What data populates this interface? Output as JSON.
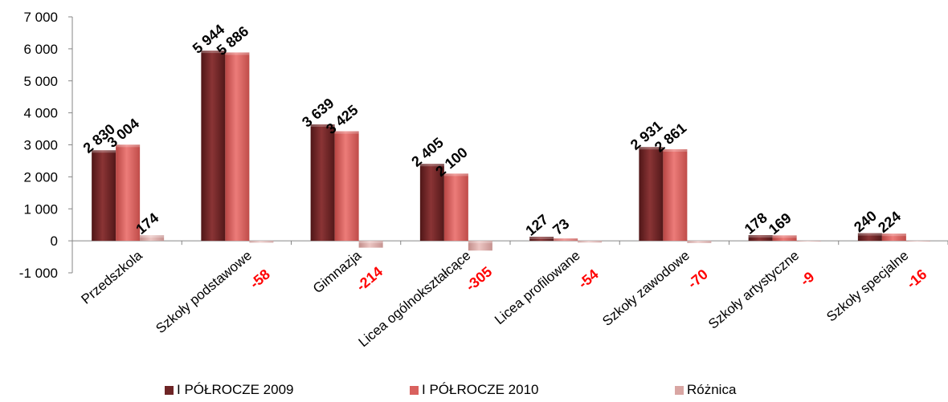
{
  "chart_data": {
    "type": "bar",
    "categories": [
      "Przedszkola",
      "Szkoły podstawowe",
      "Gimnazja",
      "Licea ogólnokształcące",
      "Licea profilowane",
      "Szkoły zawodowe",
      "Szkoły artystyczne",
      "Szkoły specjalne"
    ],
    "series": [
      {
        "name": "I PÓŁROCZE 2009",
        "values": [
          2830,
          5944,
          3639,
          2405,
          127,
          2931,
          178,
          240
        ],
        "labels": [
          "2 830",
          "5 944",
          "3 639",
          "2 405",
          "127",
          "2 931",
          "178",
          "240"
        ],
        "color": "#6e2526"
      },
      {
        "name": "I PÓŁROCZE 2010",
        "values": [
          3004,
          5886,
          3425,
          2100,
          73,
          2861,
          169,
          224
        ],
        "labels": [
          "3 004",
          "5 886",
          "3 425",
          "2 100",
          "73",
          "2 861",
          "169",
          "224"
        ],
        "color": "#d9615e"
      },
      {
        "name": "Różnica",
        "values": [
          174,
          -58,
          -214,
          -305,
          -54,
          -70,
          -9,
          -16
        ],
        "labels": [
          "174",
          "-58",
          "-214",
          "-305",
          "-54",
          "-70",
          "-9",
          "-16"
        ],
        "color": "#d9a6a3"
      }
    ],
    "yticks": [
      "7 000",
      "6 000",
      "5 000",
      "4 000",
      "3 000",
      "2 000",
      "1 000",
      "0",
      "-1 000"
    ],
    "ylim": [
      -1000,
      7000
    ],
    "grid": false,
    "legend_position": "bottom",
    "label_colors": {
      "positive": "#000000",
      "negative": "#ff0000"
    }
  }
}
